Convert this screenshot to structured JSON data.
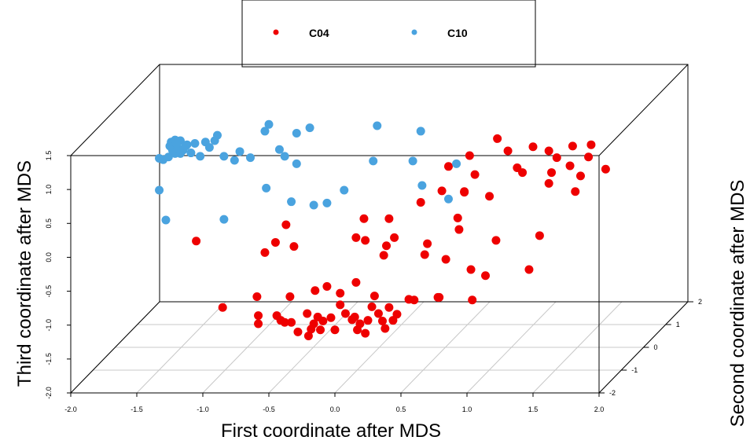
{
  "chart_data": {
    "type": "scatter3d",
    "title": "",
    "xlabel": "First coordinate after MDS",
    "ylabel": "Second coordinate after MDS",
    "zlabel": "Third coordinate after MDS",
    "xlim": [
      -2.0,
      2.0
    ],
    "ylim": [
      -2,
      2
    ],
    "zlim": [
      -2.0,
      1.5
    ],
    "x_ticks": [
      "-2.0",
      "-1.5",
      "-1.0",
      "-0.5",
      "0.0",
      "0.5",
      "1.0",
      "1.5",
      "2.0"
    ],
    "y_ticks": [
      "-2",
      "-1",
      "0",
      "1",
      "2"
    ],
    "z_ticks": [
      "-2.0",
      "-1.5",
      "-1.0",
      "-0.5",
      "0.0",
      "0.5",
      "1.0",
      "1.5"
    ],
    "legend_position": "top-center",
    "colors": {
      "C04": "#ee0000",
      "C10": "#4aa3df"
    },
    "series": [
      {
        "name": "C04",
        "color": "#ee0000",
        "points": [
          [
            -1.05,
            0.24
          ],
          [
            -0.53,
            0.07
          ],
          [
            -0.45,
            0.22
          ],
          [
            -0.37,
            0.48
          ],
          [
            -0.31,
            0.16
          ],
          [
            -0.85,
            -0.74
          ],
          [
            -0.59,
            -0.58
          ],
          [
            -0.58,
            -0.86
          ],
          [
            -0.58,
            -0.98
          ],
          [
            -0.44,
            -0.86
          ],
          [
            -0.41,
            -0.93
          ],
          [
            -0.38,
            -0.96
          ],
          [
            -0.34,
            -0.58
          ],
          [
            -0.33,
            -0.96
          ],
          [
            -0.28,
            -1.1
          ],
          [
            -0.21,
            -0.83
          ],
          [
            -0.2,
            -1.16
          ],
          [
            -0.18,
            -1.06
          ],
          [
            -0.16,
            -0.98
          ],
          [
            -0.15,
            -0.49
          ],
          [
            -0.13,
            -0.88
          ],
          [
            -0.11,
            -1.07
          ],
          [
            -0.09,
            -0.94
          ],
          [
            -0.06,
            -0.43
          ],
          [
            -0.03,
            -0.89
          ],
          [
            0.0,
            -1.07
          ],
          [
            0.04,
            -0.53
          ],
          [
            0.08,
            -0.83
          ],
          [
            0.13,
            -0.92
          ],
          [
            0.16,
            -0.37
          ],
          [
            0.15,
            -0.88
          ],
          [
            0.17,
            -1.07
          ],
          [
            0.19,
            -0.98
          ],
          [
            0.23,
            -1.12
          ],
          [
            0.25,
            -0.93
          ],
          [
            0.28,
            -0.73
          ],
          [
            0.3,
            -0.57
          ],
          [
            0.33,
            -0.83
          ],
          [
            0.36,
            -0.94
          ],
          [
            0.38,
            -1.05
          ],
          [
            0.41,
            -0.74
          ],
          [
            0.44,
            -0.93
          ],
          [
            0.47,
            -0.84
          ],
          [
            0.16,
            0.29
          ],
          [
            0.22,
            0.57
          ],
          [
            0.23,
            0.25
          ],
          [
            0.37,
            0.03
          ],
          [
            0.39,
            0.17
          ],
          [
            0.41,
            0.57
          ],
          [
            0.45,
            0.29
          ],
          [
            0.56,
            -0.62
          ],
          [
            0.6,
            -0.63
          ],
          [
            0.65,
            0.81
          ],
          [
            0.68,
            0.04
          ],
          [
            0.7,
            0.2
          ],
          [
            0.78,
            -0.59
          ],
          [
            0.79,
            -0.59
          ],
          [
            0.81,
            0.98
          ],
          [
            0.86,
            1.34
          ],
          [
            0.84,
            -0.03
          ],
          [
            0.93,
            0.58
          ],
          [
            0.94,
            0.41
          ],
          [
            0.98,
            0.97
          ],
          [
            1.02,
            1.5
          ],
          [
            1.03,
            -0.18
          ],
          [
            1.04,
            -0.63
          ],
          [
            1.06,
            1.22
          ],
          [
            1.14,
            -0.27
          ],
          [
            1.17,
            0.9
          ],
          [
            1.22,
            0.25
          ],
          [
            1.23,
            1.75
          ],
          [
            1.38,
            1.32
          ],
          [
            1.47,
            -0.18
          ],
          [
            1.55,
            0.32
          ],
          [
            1.62,
            1.09
          ],
          [
            1.64,
            1.25
          ],
          [
            1.68,
            1.47
          ],
          [
            1.8,
            1.64
          ],
          [
            1.82,
            0.97
          ],
          [
            1.86,
            1.2
          ],
          [
            1.92,
            1.48
          ],
          [
            1.94,
            1.66
          ],
          [
            2.05,
            1.3
          ],
          [
            0.04,
            -0.7
          ],
          [
            1.78,
            1.35
          ],
          [
            0.98,
            0.96
          ],
          [
            1.42,
            1.25
          ],
          [
            1.5,
            1.63
          ],
          [
            1.31,
            1.57
          ],
          [
            1.62,
            1.57
          ]
        ]
      },
      {
        "name": "C10",
        "color": "#4aa3df",
        "points": [
          [
            -1.33,
            0.99
          ],
          [
            -1.28,
            0.55
          ],
          [
            -0.84,
            0.56
          ],
          [
            -0.52,
            1.02
          ],
          [
            -0.33,
            0.82
          ],
          [
            -0.16,
            0.77
          ],
          [
            -0.06,
            0.8
          ],
          [
            0.07,
            0.99
          ],
          [
            0.29,
            1.42
          ],
          [
            0.59,
            1.42
          ],
          [
            0.66,
            1.06
          ],
          [
            0.86,
            0.86
          ],
          [
            0.32,
            1.94
          ],
          [
            0.65,
            1.86
          ],
          [
            0.92,
            1.38
          ],
          [
            -0.76,
            1.43
          ],
          [
            -0.64,
            1.47
          ],
          [
            -0.29,
            1.38
          ],
          [
            -0.38,
            1.49
          ],
          [
            -0.42,
            1.59
          ],
          [
            -0.29,
            1.83
          ],
          [
            -0.19,
            1.91
          ],
          [
            -0.53,
            1.86
          ],
          [
            -0.5,
            1.96
          ],
          [
            -0.84,
            1.49
          ],
          [
            -1.02,
            1.49
          ],
          [
            -1.17,
            1.53
          ],
          [
            -1.21,
            1.53
          ],
          [
            -1.23,
            1.58
          ],
          [
            -1.25,
            1.64
          ],
          [
            -1.24,
            1.7
          ],
          [
            -1.21,
            1.73
          ],
          [
            -1.17,
            1.72
          ],
          [
            -1.12,
            1.66
          ],
          [
            -1.06,
            1.68
          ],
          [
            -0.98,
            1.7
          ],
          [
            -0.91,
            1.72
          ],
          [
            -0.89,
            1.8
          ],
          [
            -1.3,
            1.44
          ],
          [
            -1.26,
            1.48
          ],
          [
            -1.18,
            1.6
          ],
          [
            -1.15,
            1.58
          ],
          [
            -1.13,
            1.64
          ],
          [
            -1.2,
            1.68
          ],
          [
            -1.33,
            1.46
          ],
          [
            -1.09,
            1.54
          ],
          [
            -0.95,
            1.62
          ],
          [
            -0.72,
            1.56
          ]
        ]
      }
    ],
    "legend": [
      {
        "name": "C04",
        "color": "#ee0000"
      },
      {
        "name": "C10",
        "color": "#4aa3df"
      }
    ]
  }
}
